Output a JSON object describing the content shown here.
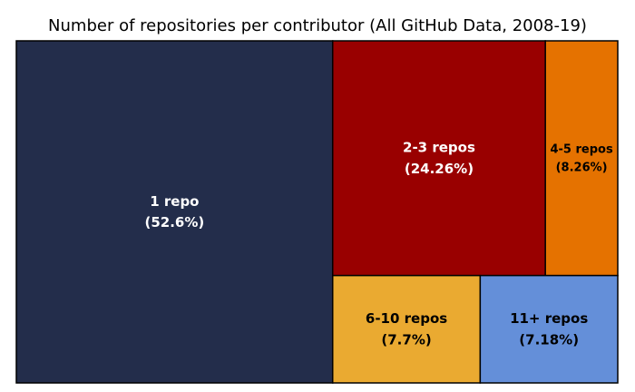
{
  "chart_data": {
    "type": "treemap",
    "title": "Number of repositories per contributor (All GitHub Data, 2008-19)",
    "unit": "%",
    "items": [
      {
        "label": "1 repo",
        "value": 52.6,
        "value_text": "(52.6%)",
        "color": "#232d4b",
        "text_color": "#ffffff"
      },
      {
        "label": "2-3 repos",
        "value": 24.26,
        "value_text": "(24.26%)",
        "color": "#990000",
        "text_color": "#ffffff"
      },
      {
        "label": "4-5 repos",
        "value": 8.26,
        "value_text": "(8.26%)",
        "color": "#e57200",
        "text_color": "#000000"
      },
      {
        "label": "6-10 repos",
        "value": 7.7,
        "value_text": "(7.7%)",
        "color": "#eaaa31",
        "text_color": "#000000"
      },
      {
        "label": "11+ repos",
        "value": 7.18,
        "value_text": "(7.18%)",
        "color": "#648fd9",
        "text_color": "#000000"
      }
    ]
  }
}
